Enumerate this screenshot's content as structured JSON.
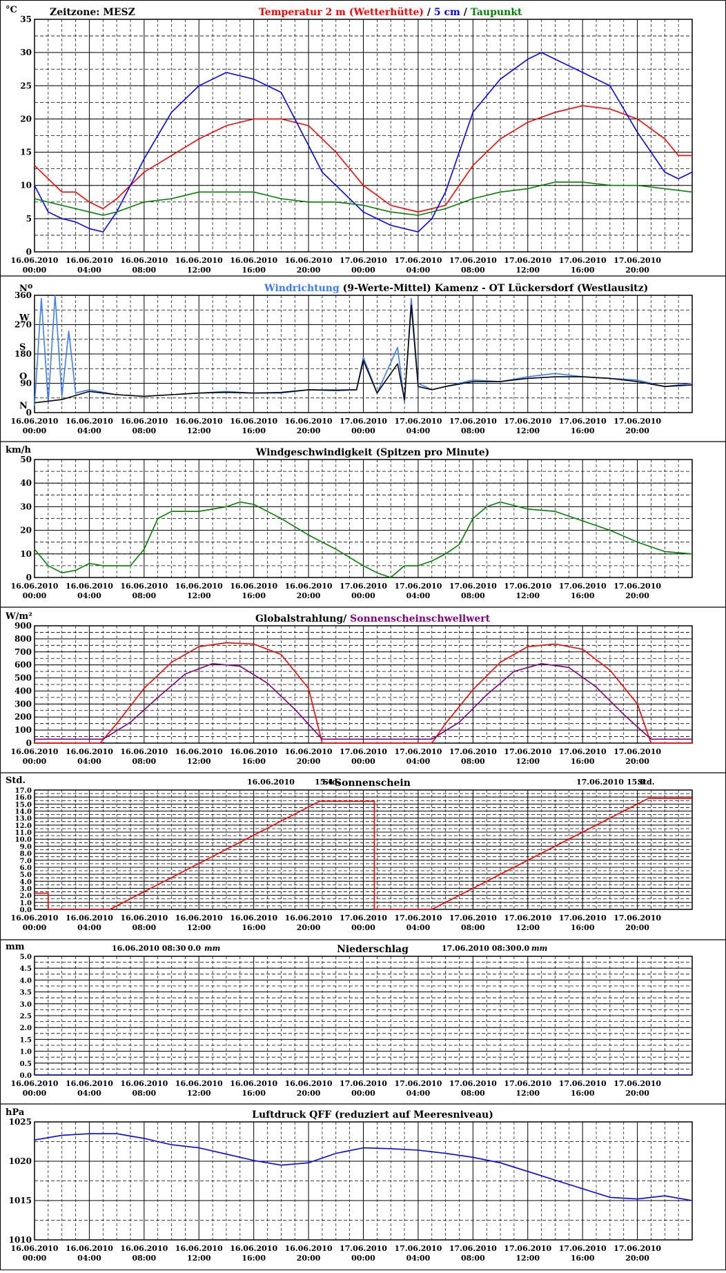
{
  "timezone_label": "Zeitzone: MESZ",
  "x_ticks": [
    {
      "date": "16.06.2010",
      "time": "00:00"
    },
    {
      "date": "16.06.2010",
      "time": "04:00"
    },
    {
      "date": "16.06.2010",
      "time": "08:00"
    },
    {
      "date": "16.06.2010",
      "time": "12:00"
    },
    {
      "date": "16.06.2010",
      "time": "16:00"
    },
    {
      "date": "16.06.2010",
      "time": "20:00"
    },
    {
      "date": "17.06.2010",
      "time": "00:00"
    },
    {
      "date": "17.06.2010",
      "time": "04:00"
    },
    {
      "date": "17.06.2010",
      "time": "08:00"
    },
    {
      "date": "17.06.2010",
      "time": "12:00"
    },
    {
      "date": "17.06.2010",
      "time": "16:00"
    },
    {
      "date": "17.06.2010",
      "time": "20:00"
    }
  ],
  "colors": {
    "red": "#ff0000",
    "blue": "#0000ff",
    "green": "#008000",
    "lightblue": "#3a7bff",
    "black": "#000000",
    "purple": "#800080"
  },
  "chart_data": [
    {
      "id": "temp",
      "type": "line",
      "unit": "°C",
      "title_parts": [
        {
          "text": "Temperatur 2 m (Wetterhütte)",
          "color": "#ff0000"
        },
        {
          "text": "  /  ",
          "color": "#000000"
        },
        {
          "text": "5 cm",
          "color": "#0000ff"
        },
        {
          "text": " / ",
          "color": "#000000"
        },
        {
          "text": "Taupunkt",
          "color": "#008000"
        }
      ],
      "ylim": [
        0,
        35
      ],
      "y_ticks": [
        "0",
        "5",
        "10",
        "15",
        "20",
        "25",
        "30",
        "35"
      ],
      "series": [
        {
          "name": "Temperatur 2 m (Wetterhütte)",
          "color": "#ff0000",
          "x": [
            0,
            1,
            2,
            3,
            4,
            5,
            6,
            8,
            10,
            12,
            14,
            16,
            18,
            20,
            22,
            24,
            26,
            28,
            30,
            32,
            34,
            36,
            38,
            40,
            42,
            44,
            46,
            47,
            48
          ],
          "values": [
            13,
            11,
            9,
            9,
            7.5,
            6.5,
            8,
            12,
            14.5,
            17,
            19,
            20,
            20,
            19,
            15,
            10,
            7,
            6,
            7,
            13,
            17,
            19.5,
            21,
            22,
            21.5,
            20,
            17,
            14.5,
            14.5
          ]
        },
        {
          "name": "5 cm",
          "color": "#0000ff",
          "x": [
            0,
            1,
            2,
            3,
            4,
            5,
            6,
            8,
            10,
            12,
            14,
            16,
            18,
            20,
            21,
            22,
            24,
            26,
            28,
            29,
            30,
            32,
            34,
            36,
            37,
            38,
            40,
            42,
            44,
            46,
            47,
            48
          ],
          "values": [
            10,
            6,
            5,
            4.5,
            3.5,
            3,
            6,
            14,
            21,
            25,
            27,
            26,
            24,
            16,
            12,
            10,
            6,
            4,
            3,
            5,
            9,
            21,
            26,
            29,
            30,
            29,
            27,
            25,
            18,
            12,
            11,
            12
          ]
        },
        {
          "name": "Taupunkt",
          "color": "#008000",
          "x": [
            0,
            2,
            4,
            5,
            6,
            8,
            10,
            12,
            14,
            16,
            18,
            20,
            22,
            24,
            26,
            28,
            30,
            32,
            34,
            36,
            38,
            40,
            42,
            44,
            46,
            48
          ],
          "values": [
            8,
            7,
            6,
            5.5,
            6,
            7.5,
            8,
            9,
            9,
            9,
            8,
            7.5,
            7.5,
            7,
            6,
            5.5,
            6.5,
            8,
            9,
            9.5,
            10.5,
            10.5,
            10,
            10,
            9.5,
            9
          ]
        }
      ]
    },
    {
      "id": "winddir",
      "type": "line",
      "unit": "",
      "title_parts": [
        {
          "text": "Windrichtung",
          "color": "#3a7bff"
        },
        {
          "text": " (9-Werte-Mittel)",
          "color": "#000000"
        }
      ],
      "subtitle": "Kamenz - OT Lückersdorf (Westlausitz)",
      "ylim": [
        0,
        360
      ],
      "y_ticks": [
        "0",
        "90",
        "180",
        "270",
        "360"
      ],
      "y_letters": [
        "N",
        "O",
        "S",
        "W",
        "N"
      ],
      "series": [
        {
          "name": "Windrichtung",
          "color": "#3a7bff",
          "x": [
            0,
            0.5,
            1,
            1.5,
            2,
            2.5,
            3,
            4,
            6,
            8,
            10,
            12,
            14,
            16,
            18,
            20,
            22,
            23.5,
            24,
            25,
            26.5,
            27,
            27.5,
            28,
            29,
            30,
            32,
            34,
            36,
            38,
            40,
            42,
            44,
            46,
            48
          ],
          "values": [
            20,
            350,
            30,
            360,
            50,
            250,
            60,
            70,
            55,
            50,
            55,
            60,
            65,
            60,
            60,
            70,
            70,
            70,
            170,
            60,
            200,
            30,
            350,
            90,
            70,
            80,
            100,
            95,
            110,
            120,
            110,
            105,
            100,
            80,
            90
          ]
        },
        {
          "name": "9-Werte-Mittel",
          "color": "#000000",
          "x": [
            0,
            2,
            4,
            6,
            8,
            10,
            12,
            14,
            16,
            18,
            20,
            22,
            23.5,
            24,
            25,
            26.5,
            27,
            27.5,
            28,
            29,
            30,
            32,
            34,
            36,
            38,
            40,
            42,
            44,
            46,
            48
          ],
          "values": [
            30,
            40,
            65,
            55,
            50,
            55,
            60,
            62,
            60,
            62,
            70,
            68,
            70,
            160,
            60,
            150,
            40,
            330,
            80,
            70,
            80,
            95,
            95,
            105,
            110,
            110,
            105,
            95,
            80,
            85
          ]
        }
      ]
    },
    {
      "id": "windspeed",
      "type": "line",
      "unit": "km/h",
      "title_parts": [
        {
          "text": "Windgeschwindigkeit (Spitzen pro Minute)",
          "color": "#000000"
        }
      ],
      "ylim": [
        0,
        50
      ],
      "y_ticks": [
        "0",
        "10",
        "20",
        "30",
        "40",
        "50"
      ],
      "series": [
        {
          "name": "Windgeschwindigkeit",
          "color": "#008000",
          "x": [
            0,
            1,
            2,
            3,
            4,
            5,
            6,
            7,
            8,
            9,
            10,
            12,
            14,
            15,
            16,
            17,
            18,
            20,
            22,
            24,
            25,
            26,
            27,
            28,
            29,
            30,
            31,
            32,
            33,
            34,
            36,
            38,
            40,
            42,
            44,
            46,
            48
          ],
          "values": [
            12,
            5,
            2,
            3,
            6,
            5,
            5,
            5,
            12,
            25,
            28,
            28,
            30,
            32,
            31,
            28,
            25,
            18,
            12,
            5,
            2,
            0,
            5,
            5,
            7,
            10,
            14,
            25,
            30,
            32,
            29,
            28,
            24,
            20,
            15,
            11,
            10
          ]
        }
      ]
    },
    {
      "id": "radiation",
      "type": "line",
      "unit": "W/m²",
      "title_parts": [
        {
          "text": "Globalstrahlung/ ",
          "color": "#000000"
        },
        {
          "text": "Sonnenscheinschwellwert",
          "color": "#800080"
        }
      ],
      "ylim": [
        0,
        900
      ],
      "y_ticks": [
        "0",
        "100",
        "200",
        "300",
        "400",
        "500",
        "600",
        "700",
        "800",
        "900"
      ],
      "series": [
        {
          "name": "Globalstrahlung",
          "color": "#ff0000",
          "x": [
            0,
            4.8,
            6,
            8,
            10,
            12,
            14,
            16,
            18,
            20,
            21,
            29,
            30,
            32,
            34,
            36,
            38,
            40,
            42,
            44,
            45,
            48
          ],
          "values": [
            0,
            0,
            150,
            420,
            620,
            740,
            770,
            760,
            680,
            420,
            0,
            0,
            150,
            410,
            620,
            740,
            760,
            720,
            560,
            300,
            0,
            0
          ]
        },
        {
          "name": "Sonnenscheinschwellwert",
          "color": "#800080",
          "x": [
            0,
            5,
            7,
            9,
            11,
            13,
            15,
            17,
            19,
            21,
            29,
            31,
            33,
            35,
            37,
            39,
            41,
            43,
            45,
            48
          ],
          "values": [
            30,
            30,
            160,
            350,
            530,
            610,
            590,
            460,
            260,
            30,
            30,
            160,
            370,
            550,
            610,
            580,
            430,
            220,
            30,
            30
          ]
        }
      ]
    },
    {
      "id": "sunshine",
      "type": "line",
      "unit": "Std.",
      "title_parts": [
        {
          "text": "Sonnenschein",
          "color": "#000000"
        }
      ],
      "annotations": [
        {
          "date": "16.06.2010",
          "value": "15.4",
          "unit": "Std."
        },
        {
          "date": "17.06.2010",
          "value": "15.8",
          "unit": "Std."
        }
      ],
      "ylim": [
        0,
        17
      ],
      "y_ticks": [
        "0.0",
        "1.0",
        "2.0",
        "3.0",
        "4.0",
        "5.0",
        "6.0",
        "7.0",
        "8.0",
        "9.0",
        "10.0",
        "11.0",
        "12.0",
        "13.0",
        "14.0",
        "15.0",
        "16.0",
        "17.0"
      ],
      "series": [
        {
          "name": "Sonnenschein",
          "color": "#ff0000",
          "x": [
            0,
            1,
            1,
            5.5,
            20.8,
            24.8,
            24.8,
            29,
            44.8,
            48
          ],
          "values": [
            2.3,
            2.3,
            0,
            0,
            15.4,
            15.4,
            0,
            0,
            15.8,
            15.8
          ]
        }
      ]
    },
    {
      "id": "precip",
      "type": "line",
      "unit": "mm",
      "title_parts": [
        {
          "text": "Niederschlag",
          "color": "#000000"
        }
      ],
      "annotations": [
        {
          "date": "16.06.2010 08:30",
          "value": "0.0",
          "unit": "mm"
        },
        {
          "date": "17.06.2010 08:30",
          "value": "0.0",
          "unit": "mm"
        }
      ],
      "ylim": [
        0,
        5
      ],
      "y_ticks": [
        "0.0",
        "0.5",
        "1.0",
        "1.5",
        "2.0",
        "2.5",
        "3.0",
        "3.5",
        "4.0",
        "4.5",
        "5.0"
      ],
      "series": [
        {
          "name": "Niederschlag",
          "color": "#0000ff",
          "x": [
            0,
            48
          ],
          "values": [
            0,
            0
          ]
        }
      ]
    },
    {
      "id": "pressure",
      "type": "line",
      "unit": "hPa",
      "title_parts": [
        {
          "text": "Luftdruck QFF (reduziert auf Meeresniveau)",
          "color": "#000000"
        }
      ],
      "ylim": [
        1010,
        1025
      ],
      "y_ticks": [
        "1010",
        "1015",
        "1020",
        "1025"
      ],
      "series": [
        {
          "name": "Luftdruck QFF",
          "color": "#0000ff",
          "x": [
            0,
            2,
            4,
            6,
            8,
            10,
            12,
            14,
            16,
            18,
            20,
            22,
            24,
            26,
            28,
            30,
            32,
            34,
            36,
            38,
            40,
            42,
            44,
            46,
            48
          ],
          "values": [
            1022.7,
            1023.3,
            1023.5,
            1023.5,
            1022.9,
            1022.1,
            1021.7,
            1020.9,
            1020.1,
            1019.5,
            1019.8,
            1021,
            1021.7,
            1021.6,
            1021.4,
            1021,
            1020.5,
            1019.8,
            1018.7,
            1017.6,
            1016.5,
            1015.4,
            1015.2,
            1015.6,
            1015
          ]
        }
      ]
    }
  ]
}
